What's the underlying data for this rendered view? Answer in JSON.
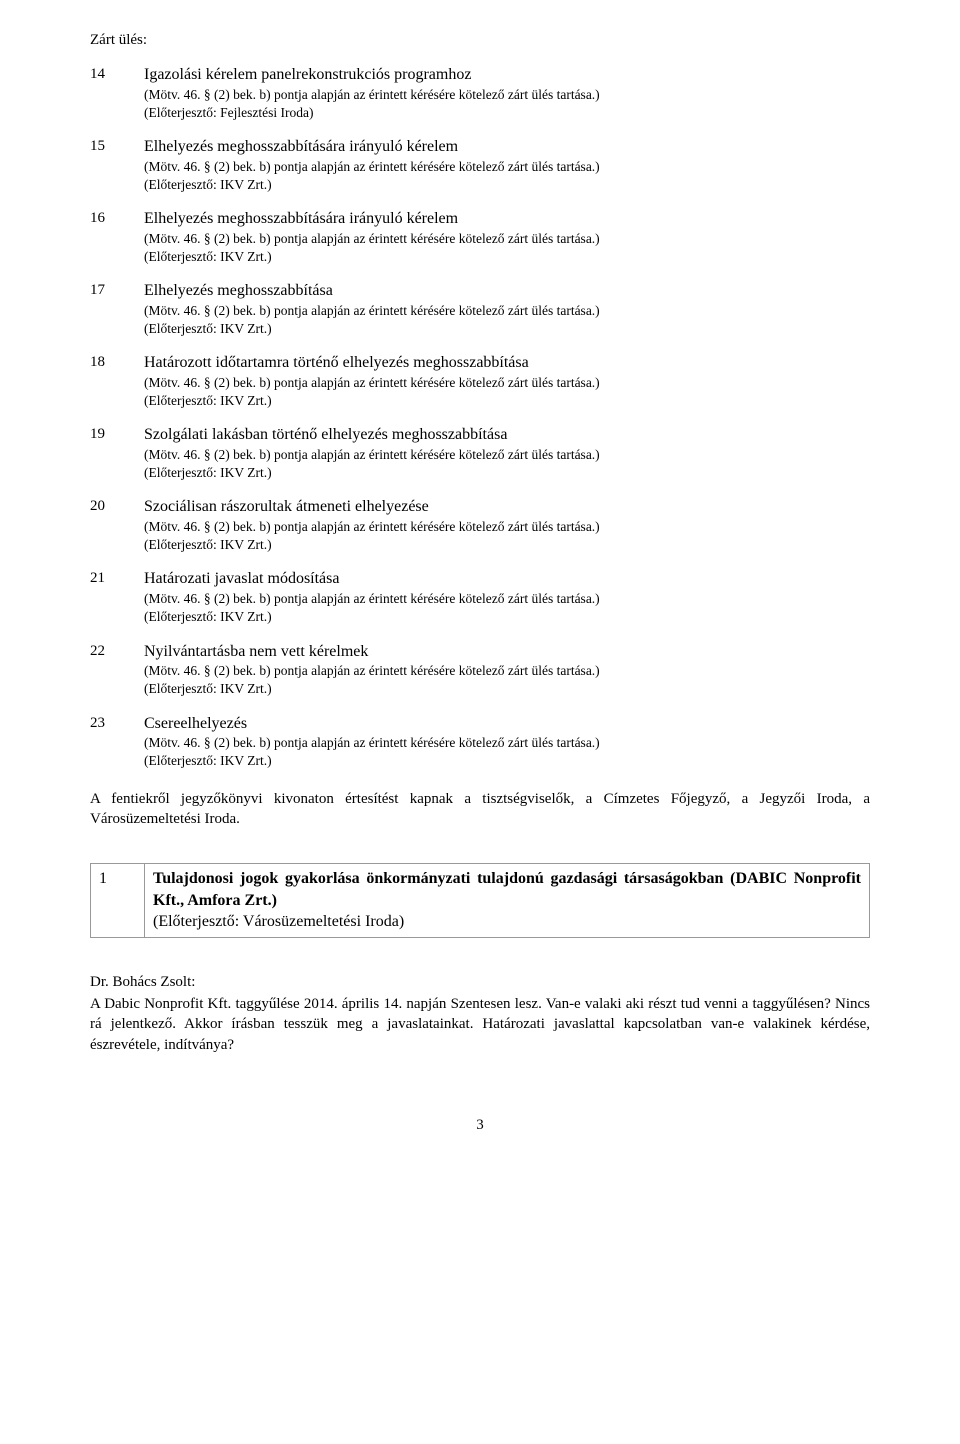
{
  "header": "Zárt ülés:",
  "legal_ref": "(Mötv. 46. § (2) bek. b) pontja alapján az érintett kérésére kötelező zárt ülés tartása.)",
  "submitter_fejlesztesi": "(Előterjesztő: Fejlesztési Iroda)",
  "submitter_ikv": "(Előterjesztő: IKV Zrt.)",
  "submitter_varos": "(Előterjesztő: Városüzemeltetési Iroda)",
  "items": [
    {
      "num": "14",
      "title": "Igazolási kérelem panelrekonstrukciós programhoz",
      "submitter_key": "submitter_fejlesztesi"
    },
    {
      "num": "15",
      "title": "Elhelyezés meghosszabbítására irányuló kérelem",
      "submitter_key": "submitter_ikv"
    },
    {
      "num": "16",
      "title": "Elhelyezés meghosszabbítására irányuló kérelem",
      "submitter_key": "submitter_ikv"
    },
    {
      "num": "17",
      "title": "Elhelyezés meghosszabbítása",
      "submitter_key": "submitter_ikv"
    },
    {
      "num": "18",
      "title": "Határozott időtartamra történő elhelyezés meghosszabbítása",
      "submitter_key": "submitter_ikv"
    },
    {
      "num": "19",
      "title": "Szolgálati lakásban történő elhelyezés meghosszabbítása",
      "submitter_key": "submitter_ikv"
    },
    {
      "num": "20",
      "title": "Szociálisan rászorultak átmeneti elhelyezése",
      "submitter_key": "submitter_ikv"
    },
    {
      "num": "21",
      "title": "Határozati javaslat módosítása",
      "submitter_key": "submitter_ikv"
    },
    {
      "num": "22",
      "title": "Nyilvántartásba nem vett kérelmek",
      "submitter_key": "submitter_ikv"
    },
    {
      "num": "23",
      "title": "Csereelhelyezés",
      "submitter_key": "submitter_ikv"
    }
  ],
  "notice": "A fentiekről jegyzőkönyvi kivonaton értesítést kapnak a tisztségviselők, a Címzetes Főjegyző, a Jegyzői Iroda, a Városüzemeltetési Iroda.",
  "boxed": {
    "num": "1",
    "title": "Tulajdonosi jogok gyakorlása önkormányzati tulajdonú gazdasági társaságokban (DABIC Nonprofit Kft., Amfora Zrt.)"
  },
  "speaker": "Dr. Bohács Zsolt:",
  "paragraph": "A Dabic Nonprofit Kft. taggyűlése 2014. április 14. napján Szentesen lesz. Van-e valaki aki részt tud venni a taggyűlésen? Nincs rá jelentkező. Akkor írásban tesszük meg a javaslatainkat. Határozati javaslattal kapcsolatban van-e valakinek kérdése, észrevétele, indítványa?",
  "page_number": "3"
}
